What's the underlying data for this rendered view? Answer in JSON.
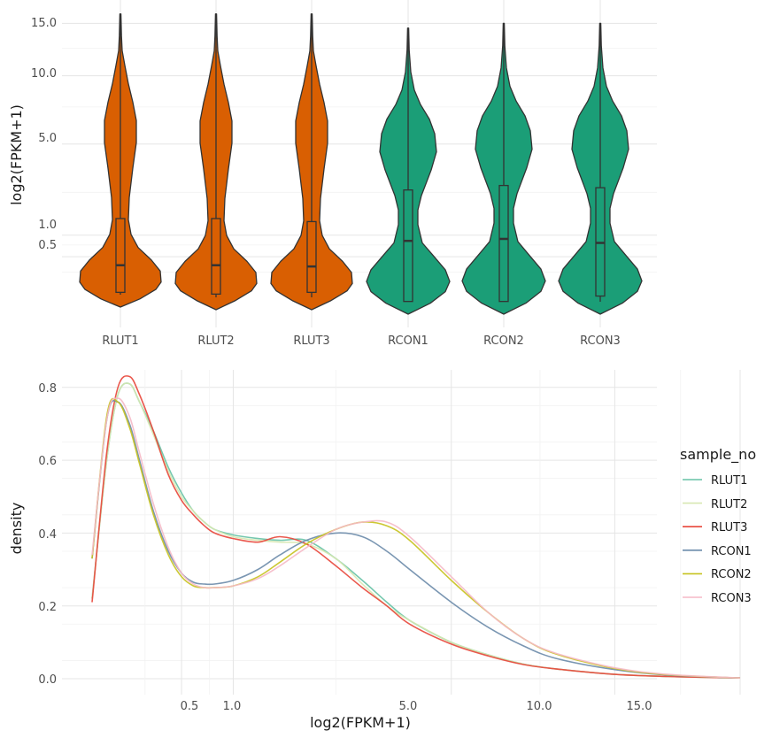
{
  "colors": {
    "rlut_fill": "#D95F02",
    "rcon_fill": "#1B9E77",
    "outline": "#333333",
    "density_palette": [
      "#66C2A5",
      "#D7E8B1",
      "#E8463A",
      "#6B8BAA",
      "#C6C21E",
      "#F5B9C6"
    ]
  },
  "chart_data": [
    {
      "type": "violin",
      "ylabel": "log2(FPKM+1)",
      "xlabel": "",
      "scale": "sqrt",
      "ylim": [
        0,
        16
      ],
      "y_ticks": [
        "15.0",
        "10.0",
        "5.0",
        "1.0",
        "0.5"
      ],
      "categories": [
        "RLUT1",
        "RLUT2",
        "RLUT3",
        "RCON1",
        "RCON2",
        "RCON3"
      ],
      "group": [
        "RLUT",
        "RLUT",
        "RLUT",
        "RCON",
        "RCON",
        "RCON"
      ],
      "box_q1": [
        0.05,
        0.04,
        0.05,
        0.01,
        0.01,
        0.03
      ],
      "median": [
        0.35,
        0.35,
        0.33,
        0.85,
        0.9,
        0.8
      ],
      "box_q3": [
        1.5,
        1.5,
        1.4,
        2.6,
        2.8,
        2.7
      ],
      "max": [
        16,
        16,
        16,
        14.5,
        15,
        15
      ]
    },
    {
      "type": "line",
      "xlabel": "log2(FPKM+1)",
      "ylabel": "density",
      "x_scale": "sqrt",
      "xlim": [
        0.04,
        15
      ],
      "ylim": [
        0,
        0.85
      ],
      "x_ticks": [
        "0.5",
        "1.0",
        "5.0",
        "10.0",
        "15.0"
      ],
      "y_ticks": [
        "0.0",
        "0.2",
        "0.4",
        "0.6",
        "0.8"
      ],
      "legend_title": "sample_no",
      "legend_position": "right",
      "x": [
        0.04,
        0.08,
        0.12,
        0.17,
        0.22,
        0.3,
        0.4,
        0.5,
        0.6,
        0.7,
        0.8,
        1.0,
        1.3,
        1.6,
        2.0,
        2.5,
        3.0,
        3.5,
        4.0,
        5.0,
        6.0,
        7.0,
        8.0,
        10.0,
        12.0,
        15.0
      ],
      "series": [
        {
          "name": "RLUT1",
          "values": [
            0.22,
            0.6,
            0.78,
            0.81,
            0.76,
            0.68,
            0.58,
            0.51,
            0.46,
            0.43,
            0.41,
            0.395,
            0.385,
            0.38,
            0.38,
            0.33,
            0.27,
            0.21,
            0.16,
            0.1,
            0.065,
            0.04,
            0.027,
            0.012,
            0.006,
            0.002
          ]
        },
        {
          "name": "RLUT2",
          "values": [
            0.22,
            0.6,
            0.78,
            0.81,
            0.76,
            0.67,
            0.57,
            0.5,
            0.46,
            0.43,
            0.41,
            0.39,
            0.38,
            0.375,
            0.37,
            0.33,
            0.26,
            0.2,
            0.16,
            0.1,
            0.065,
            0.04,
            0.027,
            0.012,
            0.006,
            0.002
          ]
        },
        {
          "name": "RLUT3",
          "values": [
            0.21,
            0.62,
            0.8,
            0.83,
            0.78,
            0.68,
            0.56,
            0.49,
            0.45,
            0.42,
            0.4,
            0.385,
            0.375,
            0.39,
            0.37,
            0.31,
            0.25,
            0.2,
            0.15,
            0.095,
            0.062,
            0.039,
            0.027,
            0.012,
            0.006,
            0.002
          ]
        },
        {
          "name": "RCON1",
          "values": [
            0.33,
            0.71,
            0.76,
            0.7,
            0.6,
            0.46,
            0.35,
            0.29,
            0.265,
            0.26,
            0.26,
            0.27,
            0.3,
            0.34,
            0.38,
            0.4,
            0.39,
            0.35,
            0.3,
            0.21,
            0.14,
            0.09,
            0.056,
            0.025,
            0.01,
            0.002
          ]
        },
        {
          "name": "RCON2",
          "values": [
            0.33,
            0.72,
            0.76,
            0.69,
            0.59,
            0.45,
            0.34,
            0.28,
            0.255,
            0.25,
            0.25,
            0.255,
            0.28,
            0.32,
            0.37,
            0.41,
            0.43,
            0.42,
            0.38,
            0.27,
            0.18,
            0.11,
            0.068,
            0.028,
            0.011,
            0.002
          ]
        },
        {
          "name": "RCON3",
          "values": [
            0.34,
            0.71,
            0.77,
            0.72,
            0.62,
            0.48,
            0.36,
            0.29,
            0.26,
            0.25,
            0.25,
            0.255,
            0.275,
            0.31,
            0.36,
            0.41,
            0.43,
            0.43,
            0.39,
            0.28,
            0.18,
            0.11,
            0.07,
            0.03,
            0.012,
            0.002
          ]
        }
      ]
    }
  ]
}
